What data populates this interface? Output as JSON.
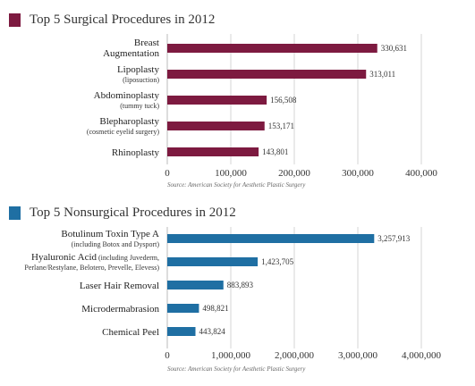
{
  "chart_data": [
    {
      "type": "bar",
      "orientation": "horizontal",
      "title": "Top 5 Surgical Procedures in 2012",
      "color": "#7d1a40",
      "categories": [
        {
          "label": "Breast",
          "label2": "Augmentation",
          "sub": ""
        },
        {
          "label": "Lipoplasty",
          "label2": "",
          "sub": "(liposuction)"
        },
        {
          "label": "Abdominoplasty",
          "label2": "",
          "sub": "(tummy tuck)"
        },
        {
          "label": "Blepharoplasty",
          "label2": "",
          "sub": "(cosmetic eyelid surgery)"
        },
        {
          "label": "Rhinoplasty",
          "label2": "",
          "sub": ""
        }
      ],
      "values": [
        330631,
        313011,
        156508,
        153171,
        143801
      ],
      "value_labels": [
        "330,631",
        "313,011",
        "156,508",
        "153,171",
        "143,801"
      ],
      "xlim": [
        0,
        400000
      ],
      "ticks": [
        0,
        100000,
        200000,
        300000,
        400000
      ],
      "tick_labels": [
        "0",
        "100,000",
        "200,000",
        "300,000",
        "400,000"
      ],
      "grid": true,
      "source": "Source: American Society for Aesthetic Plastic Surgery"
    },
    {
      "type": "bar",
      "orientation": "horizontal",
      "title": "Top 5 Nonsurgical Procedures in 2012",
      "color": "#1f6fa3",
      "categories": [
        {
          "label": "Botulinum Toxin Type A",
          "label2": "",
          "sub": "(including Botox and Dysport)"
        },
        {
          "label": "Hyaluronic Acid",
          "label2": "",
          "inline_sub": "(including Juvederm,",
          "sub": "Perlane/Restylane, Belotero, Prevelle, Elevess)"
        },
        {
          "label": "Laser Hair Removal",
          "label2": "",
          "sub": ""
        },
        {
          "label": "Microdermabrasion",
          "label2": "",
          "sub": ""
        },
        {
          "label": "Chemical Peel",
          "label2": "",
          "sub": ""
        }
      ],
      "values": [
        3257913,
        1423705,
        883893,
        498821,
        443824
      ],
      "value_labels": [
        "3,257,913",
        "1,423,705",
        "883,893",
        "498,821",
        "443,824"
      ],
      "xlim": [
        0,
        4000000
      ],
      "ticks": [
        0,
        1000000,
        2000000,
        3000000,
        4000000
      ],
      "tick_labels": [
        "0",
        "1,000,000",
        "2,000,000",
        "3,000,000",
        "4,000,000"
      ],
      "grid": true,
      "source": "Source: American Society for Aesthetic Plastic Surgery"
    }
  ]
}
